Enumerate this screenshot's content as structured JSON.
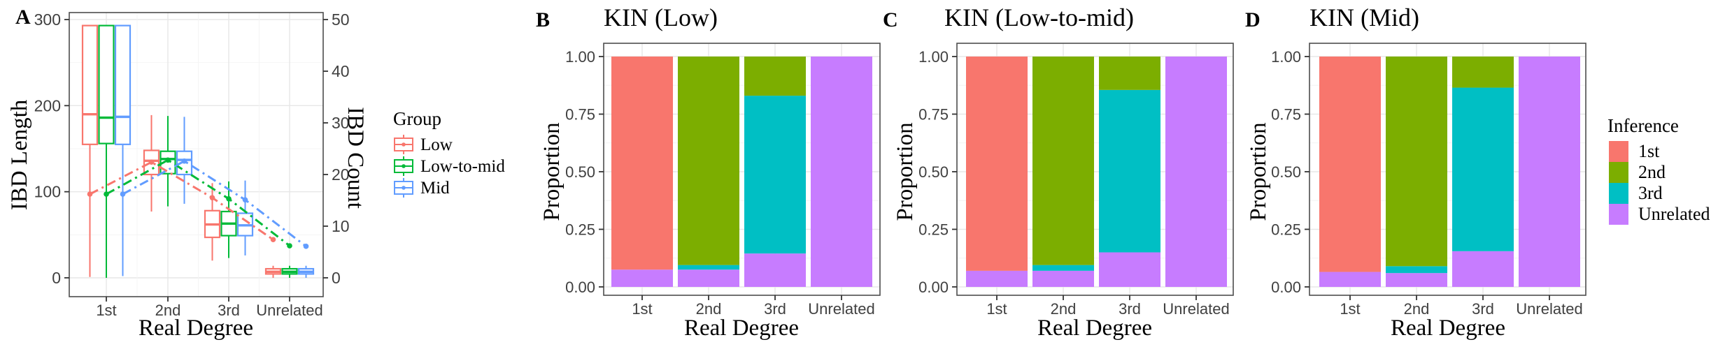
{
  "inference_legend": {
    "title": "Inference",
    "entries": [
      {
        "label": "1st",
        "color": "#F8766D"
      },
      {
        "label": "2nd",
        "color": "#7CAE00"
      },
      {
        "label": "3rd",
        "color": "#00BFC4"
      },
      {
        "label": "Unrelated",
        "color": "#C77CFF"
      }
    ]
  },
  "chart_data": [
    {
      "panel": "A",
      "type": "boxplot+line",
      "title": "",
      "xlabel": "Real Degree",
      "ylabel": "IBD Length",
      "y2label": "IBD Count",
      "categories": [
        "1st",
        "2nd",
        "3rd",
        "Unrelated"
      ],
      "ylim": [
        0,
        300
      ],
      "y_ticks": [
        0,
        100,
        200,
        300
      ],
      "y2lim": [
        0,
        50
      ],
      "y2_ticks": [
        0,
        10,
        20,
        30,
        40,
        50
      ],
      "line_style": "dot-dash",
      "legend": {
        "title": "Group"
      },
      "series": [
        {
          "name": "Low",
          "color": "#F8766D",
          "box_stats": [
            {
              "lo": 1,
              "q1": 155,
              "med": 190,
              "q3": 293,
              "hi": 293
            },
            {
              "lo": 77,
              "q1": 120,
              "med": 136,
              "q3": 148,
              "hi": 189
            },
            {
              "lo": 20,
              "q1": 47,
              "med": 62,
              "q3": 78,
              "hi": 110
            },
            {
              "lo": 0,
              "q1": 4.5,
              "med": 7,
              "q3": 10.5,
              "hi": 14
            }
          ],
          "ibd_count_line": [
            16.2,
            22.4,
            15.5,
            7.4
          ]
        },
        {
          "name": "Low-to-mid",
          "color": "#00BA38",
          "box_stats": [
            {
              "lo": 0,
              "q1": 156,
              "med": 186,
              "q3": 293,
              "hi": 293
            },
            {
              "lo": 83,
              "q1": 121,
              "med": 138,
              "q3": 147,
              "hi": 188
            },
            {
              "lo": 23,
              "q1": 49,
              "med": 63,
              "q3": 77,
              "hi": 112
            },
            {
              "lo": 0,
              "q1": 4.5,
              "med": 7,
              "q3": 10.5,
              "hi": 14
            }
          ],
          "ibd_count_line": [
            16.2,
            22.8,
            15.3,
            6.2
          ]
        },
        {
          "name": "Mid",
          "color": "#619CFF",
          "box_stats": [
            {
              "lo": 2,
              "q1": 155,
              "med": 187,
              "q3": 293,
              "hi": 293
            },
            {
              "lo": 86,
              "q1": 120,
              "med": 137,
              "q3": 147,
              "hi": 187
            },
            {
              "lo": 26,
              "q1": 49,
              "med": 61,
              "q3": 75,
              "hi": 113
            },
            {
              "lo": 0,
              "q1": 4.5,
              "med": 7,
              "q3": 10.5,
              "hi": 14
            }
          ],
          "ibd_count_line": [
            16.2,
            22.6,
            15.1,
            6.1
          ]
        }
      ]
    },
    {
      "panel": "B",
      "type": "stacked-bar",
      "title": "KIN (Low)",
      "xlabel": "Real Degree",
      "ylabel": "Proportion",
      "categories": [
        "1st",
        "2nd",
        "3rd",
        "Unrelated"
      ],
      "ylim": [
        0,
        1
      ],
      "y_tick_labels": [
        "0.00",
        "0.25",
        "0.50",
        "0.75",
        "1.00"
      ],
      "y_tick_values": [
        0,
        0.25,
        0.5,
        0.75,
        1
      ],
      "stack_order": [
        "Unrelated",
        "3rd",
        "2nd",
        "1st"
      ],
      "series": [
        {
          "name": "1st",
          "color": "#F8766D",
          "values": [
            0.925,
            0,
            0,
            0
          ]
        },
        {
          "name": "2nd",
          "color": "#7CAE00",
          "values": [
            0,
            0.905,
            0.17,
            0
          ]
        },
        {
          "name": "3rd",
          "color": "#00BFC4",
          "values": [
            0,
            0.02,
            0.685,
            0
          ]
        },
        {
          "name": "Unrelated",
          "color": "#C77CFF",
          "values": [
            0.075,
            0.075,
            0.145,
            1
          ]
        }
      ]
    },
    {
      "panel": "C",
      "type": "stacked-bar",
      "title": "KIN (Low-to-mid)",
      "xlabel": "Real Degree",
      "ylabel": "Proportion",
      "categories": [
        "1st",
        "2nd",
        "3rd",
        "Unrelated"
      ],
      "ylim": [
        0,
        1
      ],
      "y_tick_labels": [
        "0.00",
        "0.25",
        "0.50",
        "0.75",
        "1.00"
      ],
      "y_tick_values": [
        0,
        0.25,
        0.5,
        0.75,
        1
      ],
      "stack_order": [
        "Unrelated",
        "3rd",
        "2nd",
        "1st"
      ],
      "series": [
        {
          "name": "1st",
          "color": "#F8766D",
          "values": [
            0.93,
            0,
            0,
            0
          ]
        },
        {
          "name": "2nd",
          "color": "#7CAE00",
          "values": [
            0,
            0.905,
            0.145,
            0
          ]
        },
        {
          "name": "3rd",
          "color": "#00BFC4",
          "values": [
            0,
            0.025,
            0.705,
            0
          ]
        },
        {
          "name": "Unrelated",
          "color": "#C77CFF",
          "values": [
            0.07,
            0.07,
            0.15,
            1
          ]
        }
      ]
    },
    {
      "panel": "D",
      "type": "stacked-bar",
      "title": "KIN (Mid)",
      "xlabel": "Real Degree",
      "ylabel": "Proportion",
      "categories": [
        "1st",
        "2nd",
        "3rd",
        "Unrelated"
      ],
      "ylim": [
        0,
        1
      ],
      "y_tick_labels": [
        "0.00",
        "0.25",
        "0.50",
        "0.75",
        "1.00"
      ],
      "y_tick_values": [
        0,
        0.25,
        0.5,
        0.75,
        1
      ],
      "stack_order": [
        "Unrelated",
        "3rd",
        "2nd",
        "1st"
      ],
      "series": [
        {
          "name": "1st",
          "color": "#F8766D",
          "values": [
            0.935,
            0,
            0,
            0
          ]
        },
        {
          "name": "2nd",
          "color": "#7CAE00",
          "values": [
            0,
            0.91,
            0.135,
            0
          ]
        },
        {
          "name": "3rd",
          "color": "#00BFC4",
          "values": [
            0,
            0.03,
            0.71,
            0
          ]
        },
        {
          "name": "Unrelated",
          "color": "#C77CFF",
          "values": [
            0.065,
            0.06,
            0.155,
            1
          ]
        }
      ]
    }
  ]
}
